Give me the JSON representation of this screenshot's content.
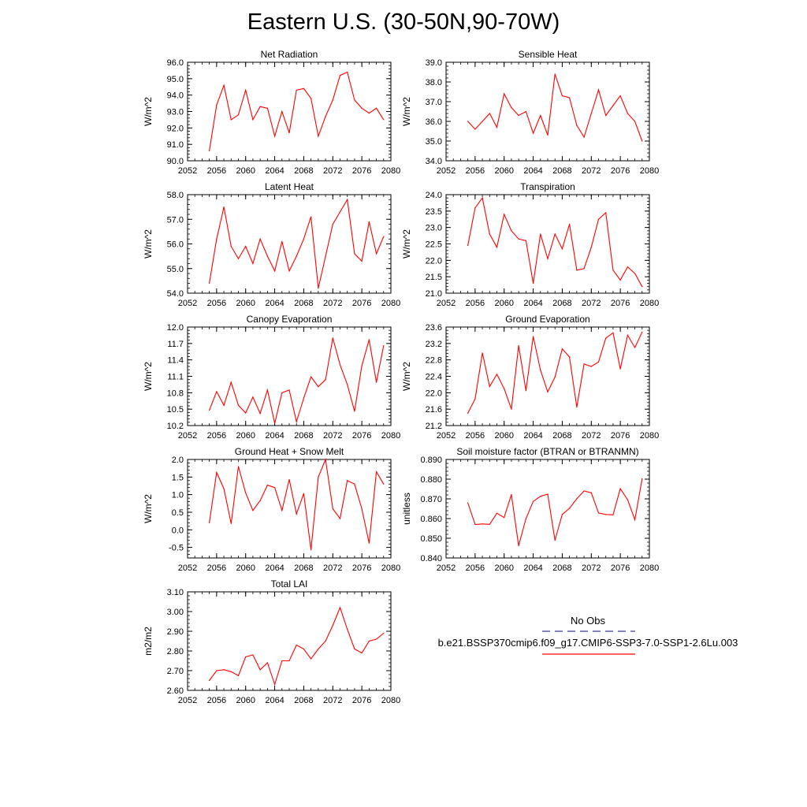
{
  "title": "Eastern U.S. (30-50N,90-70W)",
  "line_color": "#ff0000",
  "legend": {
    "entries": [
      {
        "label": "No Obs",
        "style": "dashed",
        "color": "#3a3aa0"
      },
      {
        "label": "b.e21.BSSP370cmip6.f09_g17.CMIP6-SSP3-7.0-SSP1-2.6Lu.003",
        "style": "solid",
        "color": "#ff0000"
      }
    ]
  },
  "chart_data": [
    {
      "type": "line",
      "title": "Net Radiation",
      "ylabel": "W/m^2",
      "xlabel": "",
      "xlim": [
        2052,
        2080
      ],
      "ylim": [
        90.0,
        96.0
      ],
      "xticks": [
        "2052",
        "2056",
        "2060",
        "2064",
        "2068",
        "2072",
        "2076",
        "2080"
      ],
      "yticks": [
        "90.0",
        "91.0",
        "92.0",
        "93.0",
        "94.0",
        "95.0",
        "96.0"
      ],
      "x": [
        2055,
        2056,
        2057,
        2058,
        2059,
        2060,
        2061,
        2062,
        2063,
        2064,
        2065,
        2066,
        2067,
        2068,
        2069,
        2070,
        2071,
        2072,
        2073,
        2074,
        2075,
        2076,
        2077,
        2078,
        2079
      ],
      "y": [
        90.6,
        93.4,
        94.6,
        92.5,
        92.8,
        94.3,
        92.5,
        93.3,
        93.2,
        91.5,
        93.0,
        91.7,
        94.3,
        94.4,
        93.8,
        91.5,
        92.7,
        93.7,
        95.2,
        95.4,
        93.7,
        93.2,
        92.9,
        93.2,
        92.5
      ]
    },
    {
      "type": "line",
      "title": "Sensible Heat",
      "ylabel": "W/m^2",
      "xlabel": "",
      "xlim": [
        2052,
        2080
      ],
      "ylim": [
        34.0,
        39.0
      ],
      "xticks": [
        "2052",
        "2056",
        "2060",
        "2064",
        "2068",
        "2072",
        "2076",
        "2080"
      ],
      "yticks": [
        "34.0",
        "35.0",
        "36.0",
        "37.0",
        "38.0",
        "39.0"
      ],
      "x": [
        2055,
        2056,
        2057,
        2058,
        2059,
        2060,
        2061,
        2062,
        2063,
        2064,
        2065,
        2066,
        2067,
        2068,
        2069,
        2070,
        2071,
        2072,
        2073,
        2074,
        2075,
        2076,
        2077,
        2078,
        2079
      ],
      "y": [
        36.0,
        35.6,
        36.0,
        36.4,
        35.7,
        37.4,
        36.7,
        36.3,
        36.5,
        35.4,
        36.3,
        35.3,
        38.4,
        37.3,
        37.2,
        35.8,
        35.2,
        36.4,
        37.6,
        36.3,
        36.8,
        37.3,
        36.4,
        36.0,
        35.0
      ]
    },
    {
      "type": "line",
      "title": "Latent Heat",
      "ylabel": "W/m^2",
      "xlabel": "",
      "xlim": [
        2052,
        2080
      ],
      "ylim": [
        54.0,
        58.0
      ],
      "xticks": [
        "2052",
        "2056",
        "2060",
        "2064",
        "2068",
        "2072",
        "2076",
        "2080"
      ],
      "yticks": [
        "54.0",
        "55.0",
        "56.0",
        "57.0",
        "58.0"
      ],
      "x": [
        2055,
        2056,
        2057,
        2058,
        2059,
        2060,
        2061,
        2062,
        2063,
        2064,
        2065,
        2066,
        2067,
        2068,
        2069,
        2070,
        2071,
        2072,
        2073,
        2074,
        2075,
        2076,
        2077,
        2078,
        2079
      ],
      "y": [
        54.4,
        56.2,
        57.5,
        55.9,
        55.4,
        55.9,
        55.2,
        56.2,
        55.5,
        54.9,
        56.1,
        54.9,
        55.5,
        56.2,
        57.1,
        54.2,
        55.5,
        56.8,
        57.3,
        57.8,
        55.6,
        55.3,
        56.9,
        55.6,
        56.3
      ]
    },
    {
      "type": "line",
      "title": "Transpiration",
      "ylabel": "W/m^2",
      "xlabel": "",
      "xlim": [
        2052,
        2080
      ],
      "ylim": [
        21.0,
        24.0
      ],
      "xticks": [
        "2052",
        "2056",
        "2060",
        "2064",
        "2068",
        "2072",
        "2076",
        "2080"
      ],
      "yticks": [
        "21.0",
        "21.5",
        "22.0",
        "22.5",
        "23.0",
        "23.5",
        "24.0"
      ],
      "x": [
        2055,
        2056,
        2057,
        2058,
        2059,
        2060,
        2061,
        2062,
        2063,
        2064,
        2065,
        2066,
        2067,
        2068,
        2069,
        2070,
        2071,
        2072,
        2073,
        2074,
        2075,
        2076,
        2077,
        2078,
        2079
      ],
      "y": [
        22.45,
        23.6,
        23.9,
        22.8,
        22.4,
        23.4,
        22.9,
        22.65,
        22.6,
        21.3,
        22.8,
        22.05,
        22.8,
        22.35,
        23.1,
        21.7,
        21.75,
        22.4,
        23.25,
        23.45,
        21.7,
        21.4,
        21.8,
        21.6,
        21.2
      ]
    },
    {
      "type": "line",
      "title": "Canopy Evaporation",
      "ylabel": "W/m^2",
      "xlabel": "",
      "xlim": [
        2052,
        2080
      ],
      "ylim": [
        10.2,
        12.0
      ],
      "xticks": [
        "2052",
        "2056",
        "2060",
        "2064",
        "2068",
        "2072",
        "2076",
        "2080"
      ],
      "yticks": [
        "10.2",
        "10.5",
        "10.8",
        "11.1",
        "11.4",
        "11.7",
        "12.0"
      ],
      "x": [
        2055,
        2056,
        2057,
        2058,
        2059,
        2060,
        2061,
        2062,
        2063,
        2064,
        2065,
        2066,
        2067,
        2068,
        2069,
        2070,
        2071,
        2072,
        2073,
        2074,
        2075,
        2076,
        2077,
        2078,
        2079
      ],
      "y": [
        10.48,
        10.82,
        10.57,
        10.99,
        10.57,
        10.43,
        10.72,
        10.42,
        10.85,
        10.24,
        10.8,
        10.85,
        10.27,
        10.7,
        11.09,
        10.91,
        11.04,
        11.8,
        11.31,
        10.95,
        10.46,
        11.29,
        11.77,
        10.99,
        11.66
      ]
    },
    {
      "type": "line",
      "title": "Ground Evaporation",
      "ylabel": "W/m^2",
      "xlabel": "",
      "xlim": [
        2052,
        2080
      ],
      "ylim": [
        21.2,
        23.6
      ],
      "xticks": [
        "2052",
        "2056",
        "2060",
        "2064",
        "2068",
        "2072",
        "2076",
        "2080"
      ],
      "yticks": [
        "21.2",
        "21.6",
        "22.0",
        "22.4",
        "22.8",
        "23.2",
        "23.6"
      ],
      "x": [
        2055,
        2056,
        2057,
        2058,
        2059,
        2060,
        2061,
        2062,
        2063,
        2064,
        2065,
        2066,
        2067,
        2068,
        2069,
        2070,
        2071,
        2072,
        2073,
        2074,
        2075,
        2076,
        2077,
        2078,
        2079
      ],
      "y": [
        21.5,
        21.85,
        22.97,
        22.15,
        22.45,
        22.1,
        21.6,
        23.15,
        22.05,
        23.37,
        22.55,
        22.02,
        22.38,
        23.07,
        22.87,
        21.65,
        22.7,
        22.64,
        22.75,
        23.33,
        23.46,
        22.58,
        23.4,
        23.1,
        23.48
      ]
    },
    {
      "type": "line",
      "title": "Ground Heat + Snow Melt",
      "ylabel": "W/m^2",
      "xlabel": "",
      "xlim": [
        2052,
        2080
      ],
      "ylim": [
        -0.8,
        2.0
      ],
      "xticks": [
        "2052",
        "2056",
        "2060",
        "2064",
        "2068",
        "2072",
        "2076",
        "2080"
      ],
      "yticks": [
        "-0.5",
        "0.0",
        "0.5",
        "1.0",
        "1.5",
        "2.0"
      ],
      "x": [
        2055,
        2056,
        2057,
        2058,
        2059,
        2060,
        2061,
        2062,
        2063,
        2064,
        2065,
        2066,
        2067,
        2068,
        2069,
        2070,
        2071,
        2072,
        2073,
        2074,
        2075,
        2076,
        2077,
        2078,
        2079
      ],
      "y": [
        0.2,
        1.63,
        1.17,
        0.18,
        1.8,
        1.05,
        0.55,
        0.83,
        1.27,
        1.2,
        0.55,
        1.43,
        0.45,
        1.03,
        -0.57,
        1.5,
        2.0,
        0.6,
        0.32,
        1.4,
        1.3,
        0.6,
        -0.38,
        1.65,
        1.3
      ]
    },
    {
      "type": "line",
      "title": "Soil moisture factor (BTRAN or BTRANMN)",
      "ylabel": "unitless",
      "xlabel": "",
      "xlim": [
        2052,
        2080
      ],
      "ylim": [
        0.84,
        0.89
      ],
      "xticks": [
        "2052",
        "2056",
        "2060",
        "2064",
        "2068",
        "2072",
        "2076",
        "2080"
      ],
      "yticks": [
        "0.840",
        "0.850",
        "0.860",
        "0.870",
        "0.880",
        "0.890"
      ],
      "x": [
        2055,
        2056,
        2057,
        2058,
        2059,
        2060,
        2061,
        2062,
        2063,
        2064,
        2065,
        2066,
        2067,
        2068,
        2069,
        2070,
        2071,
        2072,
        2073,
        2074,
        2075,
        2076,
        2077,
        2078,
        2079
      ],
      "y": [
        0.868,
        0.857,
        0.8573,
        0.8571,
        0.8627,
        0.8605,
        0.8722,
        0.8462,
        0.86,
        0.8687,
        0.8713,
        0.8724,
        0.849,
        0.8621,
        0.8652,
        0.8701,
        0.874,
        0.8731,
        0.8628,
        0.8621,
        0.8619,
        0.8752,
        0.8695,
        0.8594,
        0.8802
      ]
    },
    {
      "type": "line",
      "title": "Total LAI",
      "ylabel": "m2/m2",
      "xlabel": "",
      "xlim": [
        2052,
        2080
      ],
      "ylim": [
        2.6,
        3.1
      ],
      "xticks": [
        "2052",
        "2056",
        "2060",
        "2064",
        "2068",
        "2072",
        "2076",
        "2080"
      ],
      "yticks": [
        "2.60",
        "2.70",
        "2.80",
        "2.90",
        "3.00",
        "3.10"
      ],
      "x": [
        2055,
        2056,
        2057,
        2058,
        2059,
        2060,
        2061,
        2062,
        2063,
        2064,
        2065,
        2066,
        2067,
        2068,
        2069,
        2070,
        2071,
        2072,
        2073,
        2074,
        2075,
        2076,
        2077,
        2078,
        2079
      ],
      "y": [
        2.65,
        2.7,
        2.705,
        2.695,
        2.675,
        2.77,
        2.78,
        2.705,
        2.74,
        2.63,
        2.75,
        2.75,
        2.83,
        2.81,
        2.76,
        2.81,
        2.85,
        2.93,
        3.02,
        2.91,
        2.81,
        2.79,
        2.85,
        2.86,
        2.89
      ]
    }
  ]
}
